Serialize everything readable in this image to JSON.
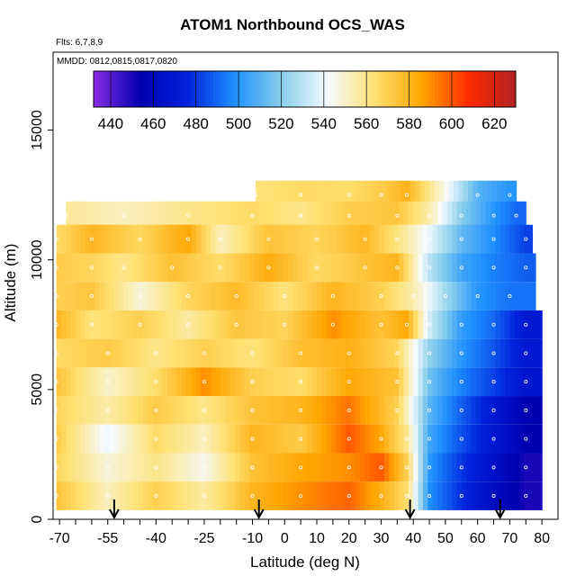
{
  "chart_data": {
    "type": "heatmap",
    "title": "ATOM1 Northbound OCS_WAS",
    "flights_label": "Flts: 6,7,8,9",
    "dates_label": "MMDD: 0812,0815,0817,0820",
    "xlabel": "Latitude (deg N)",
    "ylabel": "Altitude (m)",
    "xlim": [
      -72,
      85
    ],
    "ylim": [
      0,
      18000
    ],
    "x_ticks": [
      "-70",
      "-55",
      "-40",
      "-25",
      "-10",
      "0",
      "10",
      "20",
      "30",
      "40",
      "50",
      "60",
      "70",
      "80"
    ],
    "x_tick_values": [
      -70,
      -55,
      -40,
      -25,
      -10,
      0,
      10,
      20,
      30,
      40,
      50,
      60,
      70,
      80
    ],
    "y_ticks": [
      "0",
      "5000",
      "10000",
      "15000"
    ],
    "y_tick_values": [
      0,
      5000,
      10000,
      15000
    ],
    "colorbar": {
      "min": 432,
      "max": 630,
      "ticks": [
        "440",
        "460",
        "480",
        "500",
        "520",
        "540",
        "560",
        "580",
        "600",
        "620"
      ],
      "tick_values": [
        440,
        460,
        480,
        500,
        520,
        540,
        560,
        580,
        600,
        620
      ],
      "colors": [
        "#8a2be2",
        "#0000b0",
        "#0022dd",
        "#1e90ff",
        "#87ceeb",
        "#f5fbff",
        "#ffe070",
        "#ffa500",
        "#ff2a00",
        "#b22222"
      ]
    },
    "profile_latitudes": [
      -53,
      -8,
      39,
      67
    ],
    "altitude_bins": [
      {
        "alt": 12500,
        "lat_range": [
          -9,
          72
        ],
        "points": [
          [
            -9,
            562
          ],
          [
            5,
            566
          ],
          [
            20,
            565
          ],
          [
            30,
            571
          ],
          [
            38,
            581
          ],
          [
            50,
            545
          ],
          [
            60,
            510
          ],
          [
            70,
            500
          ]
        ]
      },
      {
        "alt": 11700,
        "lat_range": [
          -68,
          75
        ],
        "points": [
          [
            -68,
            558
          ],
          [
            -50,
            552
          ],
          [
            -30,
            560
          ],
          [
            -10,
            566
          ],
          [
            5,
            560
          ],
          [
            20,
            571
          ],
          [
            35,
            574
          ],
          [
            45,
            555
          ],
          [
            55,
            520
          ],
          [
            65,
            500
          ],
          [
            72,
            490
          ]
        ]
      },
      {
        "alt": 10800,
        "lat_range": [
          -71,
          77
        ],
        "points": [
          [
            -71,
            565
          ],
          [
            -60,
            580
          ],
          [
            -45,
            567
          ],
          [
            -30,
            585
          ],
          [
            -20,
            552
          ],
          [
            -5,
            575
          ],
          [
            10,
            568
          ],
          [
            25,
            579
          ],
          [
            35,
            562
          ],
          [
            45,
            540
          ],
          [
            55,
            512
          ],
          [
            65,
            498
          ],
          [
            75,
            482
          ]
        ]
      },
      {
        "alt": 9700,
        "lat_range": [
          -71,
          78
        ],
        "points": [
          [
            -71,
            572
          ],
          [
            -60,
            568
          ],
          [
            -50,
            560
          ],
          [
            -35,
            576
          ],
          [
            -20,
            565
          ],
          [
            -5,
            583
          ],
          [
            10,
            566
          ],
          [
            25,
            575
          ],
          [
            35,
            580
          ],
          [
            45,
            530
          ],
          [
            55,
            505
          ],
          [
            65,
            495
          ],
          [
            75,
            488
          ]
        ]
      },
      {
        "alt": 8600,
        "lat_range": [
          -71,
          78
        ],
        "points": [
          [
            -71,
            570
          ],
          [
            -60,
            574
          ],
          [
            -45,
            548
          ],
          [
            -30,
            568
          ],
          [
            -15,
            578
          ],
          [
            0,
            562
          ],
          [
            15,
            580
          ],
          [
            30,
            570
          ],
          [
            40,
            555
          ],
          [
            50,
            525
          ],
          [
            60,
            500
          ],
          [
            70,
            492
          ]
        ]
      },
      {
        "alt": 7500,
        "lat_range": [
          -71,
          80
        ],
        "points": [
          [
            -71,
            580
          ],
          [
            -60,
            562
          ],
          [
            -45,
            570
          ],
          [
            -30,
            556
          ],
          [
            -15,
            574
          ],
          [
            0,
            568
          ],
          [
            15,
            590
          ],
          [
            30,
            575
          ],
          [
            38,
            585
          ],
          [
            45,
            535
          ],
          [
            55,
            502
          ],
          [
            65,
            490
          ],
          [
            75,
            470
          ]
        ]
      },
      {
        "alt": 6400,
        "lat_range": [
          -71,
          80
        ],
        "points": [
          [
            -71,
            566
          ],
          [
            -55,
            572
          ],
          [
            -40,
            560
          ],
          [
            -25,
            570
          ],
          [
            -10,
            562
          ],
          [
            5,
            576
          ],
          [
            20,
            582
          ],
          [
            35,
            568
          ],
          [
            45,
            522
          ],
          [
            55,
            500
          ],
          [
            65,
            486
          ],
          [
            75,
            470
          ]
        ]
      },
      {
        "alt": 5300,
        "lat_range": [
          -71,
          80
        ],
        "points": [
          [
            -71,
            575
          ],
          [
            -55,
            550
          ],
          [
            -40,
            565
          ],
          [
            -25,
            590
          ],
          [
            -10,
            570
          ],
          [
            5,
            565
          ],
          [
            20,
            585
          ],
          [
            35,
            575
          ],
          [
            45,
            515
          ],
          [
            55,
            495
          ],
          [
            65,
            482
          ],
          [
            75,
            468
          ]
        ]
      },
      {
        "alt": 4200,
        "lat_range": [
          -71,
          80
        ],
        "points": [
          [
            -71,
            568
          ],
          [
            -55,
            555
          ],
          [
            -40,
            572
          ],
          [
            -25,
            560
          ],
          [
            -10,
            575
          ],
          [
            5,
            580
          ],
          [
            20,
            595
          ],
          [
            35,
            570
          ],
          [
            45,
            510
          ],
          [
            55,
            488
          ],
          [
            65,
            470
          ],
          [
            75,
            455
          ]
        ]
      },
      {
        "alt": 3100,
        "lat_range": [
          -71,
          80
        ],
        "points": [
          [
            -71,
            572
          ],
          [
            -55,
            540
          ],
          [
            -40,
            566
          ],
          [
            -25,
            552
          ],
          [
            -10,
            580
          ],
          [
            5,
            572
          ],
          [
            20,
            600
          ],
          [
            30,
            585
          ],
          [
            38,
            560
          ],
          [
            45,
            505
          ],
          [
            55,
            485
          ],
          [
            65,
            470
          ],
          [
            75,
            455
          ]
        ]
      },
      {
        "alt": 2000,
        "lat_range": [
          -71,
          80
        ],
        "points": [
          [
            -71,
            568
          ],
          [
            -55,
            548
          ],
          [
            -40,
            560
          ],
          [
            -25,
            545
          ],
          [
            -10,
            575
          ],
          [
            5,
            585
          ],
          [
            20,
            590
          ],
          [
            30,
            600
          ],
          [
            38,
            570
          ],
          [
            45,
            500
          ],
          [
            55,
            480
          ],
          [
            65,
            465
          ],
          [
            75,
            450
          ]
        ]
      },
      {
        "alt": 900,
        "lat_range": [
          -71,
          80
        ],
        "points": [
          [
            -71,
            575
          ],
          [
            -55,
            552
          ],
          [
            -40,
            570
          ],
          [
            -25,
            556
          ],
          [
            -10,
            580
          ],
          [
            5,
            590
          ],
          [
            20,
            598
          ],
          [
            30,
            582
          ],
          [
            38,
            565
          ],
          [
            45,
            498
          ],
          [
            55,
            478
          ],
          [
            65,
            462
          ],
          [
            75,
            450
          ]
        ]
      }
    ]
  }
}
